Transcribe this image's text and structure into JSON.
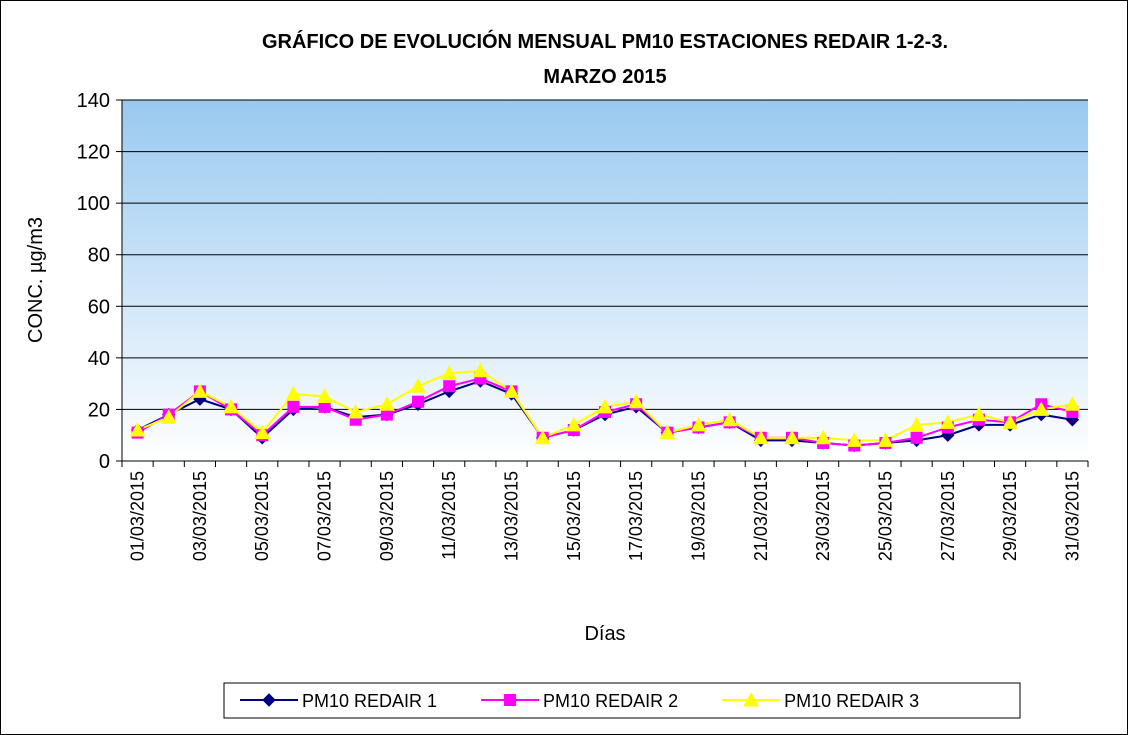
{
  "chart_data": {
    "type": "line",
    "title": [
      "GRÁFICO DE EVOLUCIÓN MENSUAL PM10 ESTACIONES REDAIR 1-2-3.",
      "MARZO 2015"
    ],
    "x_label": "Días",
    "y_label": "CONC. µg/m3",
    "categories": [
      "01/03/2015",
      null,
      "03/03/2015",
      null,
      "05/03/2015",
      null,
      "07/03/2015",
      null,
      "09/03/2015",
      null,
      "11/03/2015",
      null,
      "13/03/2015",
      null,
      "15/03/2015",
      null,
      "17/03/2015",
      null,
      "19/03/2015",
      null,
      "21/03/2015",
      null,
      "23/03/2015",
      null,
      "25/03/2015",
      null,
      "27/03/2015",
      null,
      "29/03/2015",
      null,
      "31/03/2015"
    ],
    "series": [
      {
        "name": "PM10 REDAIR 1",
        "color": "#000080",
        "marker": "diamond",
        "values": [
          12,
          18,
          24,
          20,
          9,
          20,
          21,
          17,
          18,
          22,
          27,
          31,
          26,
          9,
          12,
          18,
          21,
          11,
          13,
          15,
          8,
          8,
          7,
          6,
          7,
          8,
          10,
          14,
          14,
          18,
          16
        ]
      },
      {
        "name": "PM10 REDAIR 2",
        "color": "#ff00ff",
        "marker": "square",
        "values": [
          11,
          18,
          27,
          20,
          10,
          21,
          21,
          16,
          18,
          23,
          29,
          32,
          27,
          9,
          12,
          19,
          22,
          11,
          13,
          15,
          9,
          9,
          7,
          6,
          7,
          9,
          13,
          16,
          15,
          22,
          19
        ]
      },
      {
        "name": "PM10 REDAIR 3",
        "color": "#ffff00",
        "marker": "triangle",
        "values": [
          12,
          17,
          27,
          21,
          11,
          26,
          25,
          19,
          22,
          29,
          34,
          35,
          27,
          9,
          14,
          21,
          23,
          11,
          14,
          16,
          9,
          9,
          9,
          8,
          8,
          14,
          15,
          18,
          15,
          20,
          22
        ]
      }
    ],
    "ylim": [
      0,
      140
    ],
    "yticks": [
      0,
      20,
      40,
      60,
      80,
      100,
      120,
      140
    ],
    "grid": true,
    "legend": "bottom"
  }
}
